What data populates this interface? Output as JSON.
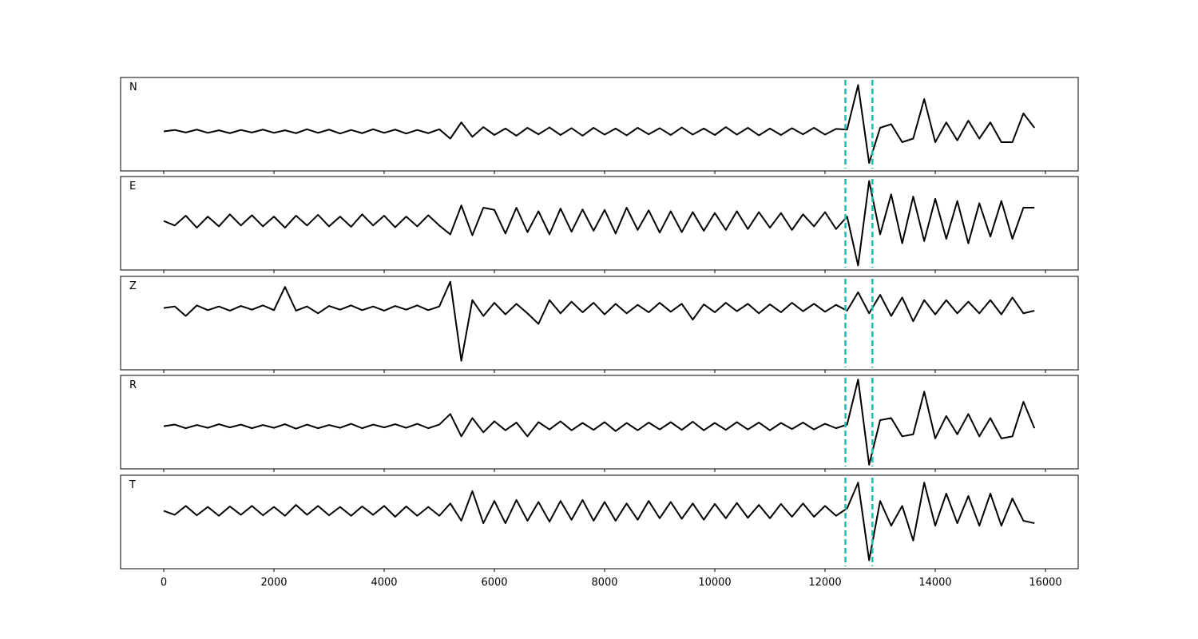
{
  "chart_data": {
    "type": "line",
    "x": [
      0,
      200,
      400,
      600,
      800,
      1000,
      1200,
      1400,
      1600,
      1800,
      2000,
      2200,
      2400,
      2600,
      2800,
      3000,
      3200,
      3400,
      3600,
      3800,
      4000,
      4200,
      4400,
      4600,
      4800,
      5000,
      5200,
      5400,
      5600,
      5800,
      6000,
      6200,
      6400,
      6600,
      6800,
      7000,
      7200,
      7400,
      7600,
      7800,
      8000,
      8200,
      8400,
      8600,
      8800,
      9000,
      9200,
      9400,
      9600,
      9800,
      10000,
      10200,
      10400,
      10600,
      10800,
      11000,
      11200,
      11400,
      11600,
      11800,
      12000,
      12200,
      12400,
      12600,
      12800,
      13000,
      13200,
      13400,
      13600,
      13800,
      14000,
      14200,
      14400,
      14600,
      14800,
      15000,
      15200,
      15400,
      15600,
      15800
    ],
    "xlim": [
      -783,
      16594
    ],
    "xticks": [
      0,
      2000,
      4000,
      6000,
      8000,
      10000,
      12000,
      14000,
      16000
    ],
    "color": "#000000",
    "markers": {
      "values": [
        12370,
        12860
      ],
      "color": "#17bfb0"
    },
    "series": [
      {
        "name": "N",
        "ylim": [
          -1.1,
          1.5
        ],
        "values": [
          0,
          0.04,
          -0.03,
          0.05,
          -0.04,
          0.03,
          -0.05,
          0.04,
          -0.03,
          0.05,
          -0.04,
          0.03,
          -0.05,
          0.06,
          -0.04,
          0.05,
          -0.06,
          0.04,
          -0.05,
          0.06,
          -0.04,
          0.05,
          -0.06,
          0.04,
          -0.05,
          0.06,
          -0.2,
          0.25,
          -0.15,
          0.12,
          -0.1,
          0.08,
          -0.12,
          0.1,
          -0.08,
          0.11,
          -0.1,
          0.09,
          -0.12,
          0.1,
          -0.09,
          0.08,
          -0.11,
          0.1,
          -0.08,
          0.09,
          -0.1,
          0.11,
          -0.09,
          0.08,
          -0.1,
          0.12,
          -0.09,
          0.1,
          -0.11,
          0.08,
          -0.1,
          0.09,
          -0.08,
          0.1,
          -0.09,
          0.07,
          0.05,
          1.29,
          -0.88,
          0.1,
          0.2,
          -0.3,
          -0.2,
          0.9,
          -0.3,
          0.25,
          -0.25,
          0.3,
          -0.2,
          0.25,
          -0.3,
          -0.3,
          0.5,
          0.1
        ]
      },
      {
        "name": "E",
        "ylim": [
          -1.1,
          1.0
        ],
        "values": [
          0,
          -0.1,
          0.12,
          -0.15,
          0.1,
          -0.12,
          0.15,
          -0.1,
          0.13,
          -0.12,
          0.1,
          -0.15,
          0.12,
          -0.1,
          0.14,
          -0.12,
          0.1,
          -0.13,
          0.15,
          -0.1,
          0.12,
          -0.14,
          0.1,
          -0.12,
          0.13,
          -0.1,
          -0.3,
          0.35,
          -0.32,
          0.3,
          0.25,
          -0.28,
          0.3,
          -0.25,
          0.22,
          -0.3,
          0.28,
          -0.24,
          0.26,
          -0.22,
          0.25,
          -0.28,
          0.3,
          -0.2,
          0.24,
          -0.26,
          0.22,
          -0.25,
          0.2,
          -0.22,
          0.18,
          -0.2,
          0.22,
          -0.18,
          0.2,
          -0.15,
          0.18,
          -0.2,
          0.15,
          -0.12,
          0.2,
          -0.18,
          0.1,
          -1.0,
          0.9,
          -0.3,
          0.6,
          -0.5,
          0.55,
          -0.45,
          0.5,
          -0.4,
          0.45,
          -0.5,
          0.4,
          -0.35,
          0.45,
          -0.4,
          0.3,
          0.3
        ]
      },
      {
        "name": "Z",
        "ylim": [
          -1.17,
          0.6
        ],
        "values": [
          0,
          0.03,
          -0.15,
          0.05,
          -0.04,
          0.03,
          -0.05,
          0.04,
          -0.03,
          0.05,
          -0.04,
          0.4,
          -0.05,
          0.03,
          -0.1,
          0.04,
          -0.03,
          0.05,
          -0.04,
          0.03,
          -0.05,
          0.04,
          -0.03,
          0.05,
          -0.04,
          0.03,
          0.5,
          -1.0,
          0.15,
          -0.15,
          0.1,
          -0.12,
          0.08,
          -0.1,
          -0.3,
          0.15,
          -0.1,
          0.12,
          -0.08,
          0.1,
          -0.12,
          0.08,
          -0.1,
          0.06,
          -0.08,
          0.1,
          -0.07,
          0.08,
          -0.22,
          0.07,
          -0.08,
          0.1,
          -0.06,
          0.08,
          -0.1,
          0.07,
          -0.08,
          0.1,
          -0.06,
          0.08,
          -0.07,
          0.06,
          -0.05,
          0.3,
          -0.1,
          0.25,
          -0.15,
          0.2,
          -0.25,
          0.15,
          -0.12,
          0.15,
          -0.1,
          0.12,
          -0.1,
          0.15,
          -0.12,
          0.2,
          -0.1,
          -0.05
        ]
      },
      {
        "name": "R",
        "ylim": [
          -1.05,
          1.25
        ],
        "values": [
          0,
          0.04,
          -0.05,
          0.03,
          -0.04,
          0.05,
          -0.03,
          0.04,
          -0.05,
          0.03,
          -0.04,
          0.05,
          -0.06,
          0.04,
          -0.05,
          0.03,
          -0.04,
          0.06,
          -0.05,
          0.04,
          -0.03,
          0.05,
          -0.04,
          0.06,
          -0.05,
          0.04,
          0.3,
          -0.25,
          0.2,
          -0.15,
          0.12,
          -0.1,
          0.09,
          -0.25,
          0.1,
          -0.08,
          0.12,
          -0.1,
          0.08,
          -0.09,
          0.1,
          -0.12,
          0.08,
          -0.1,
          0.09,
          -0.08,
          0.1,
          -0.09,
          0.11,
          -0.1,
          0.08,
          -0.09,
          0.1,
          -0.08,
          0.09,
          -0.1,
          0.08,
          -0.07,
          0.09,
          -0.08,
          0.06,
          -0.05,
          0.04,
          1.15,
          -0.95,
          0.15,
          0.2,
          -0.25,
          -0.2,
          0.85,
          -0.3,
          0.25,
          -0.2,
          0.3,
          -0.25,
          0.2,
          -0.3,
          -0.25,
          0.6,
          -0.05
        ]
      },
      {
        "name": "T",
        "ylim": [
          -1.17,
          0.72
        ],
        "values": [
          0,
          -0.08,
          0.1,
          -0.09,
          0.08,
          -0.1,
          0.09,
          -0.08,
          0.1,
          -0.09,
          0.08,
          -0.1,
          0.12,
          -0.08,
          0.1,
          -0.09,
          0.08,
          -0.1,
          0.09,
          -0.08,
          0.1,
          -0.12,
          0.09,
          -0.1,
          0.08,
          -0.1,
          0.15,
          -0.2,
          0.4,
          -0.25,
          0.2,
          -0.25,
          0.22,
          -0.2,
          0.18,
          -0.22,
          0.2,
          -0.18,
          0.22,
          -0.2,
          0.18,
          -0.2,
          0.15,
          -0.18,
          0.2,
          -0.15,
          0.18,
          -0.16,
          0.15,
          -0.18,
          0.14,
          -0.15,
          0.16,
          -0.14,
          0.12,
          -0.15,
          0.14,
          -0.12,
          0.15,
          -0.12,
          0.1,
          -0.1,
          0.05,
          0.57,
          -1.0,
          0.2,
          -0.3,
          0.1,
          -0.6,
          0.57,
          -0.3,
          0.35,
          -0.25,
          0.3,
          -0.3,
          0.35,
          -0.3,
          0.25,
          -0.2,
          -0.25
        ]
      }
    ]
  }
}
